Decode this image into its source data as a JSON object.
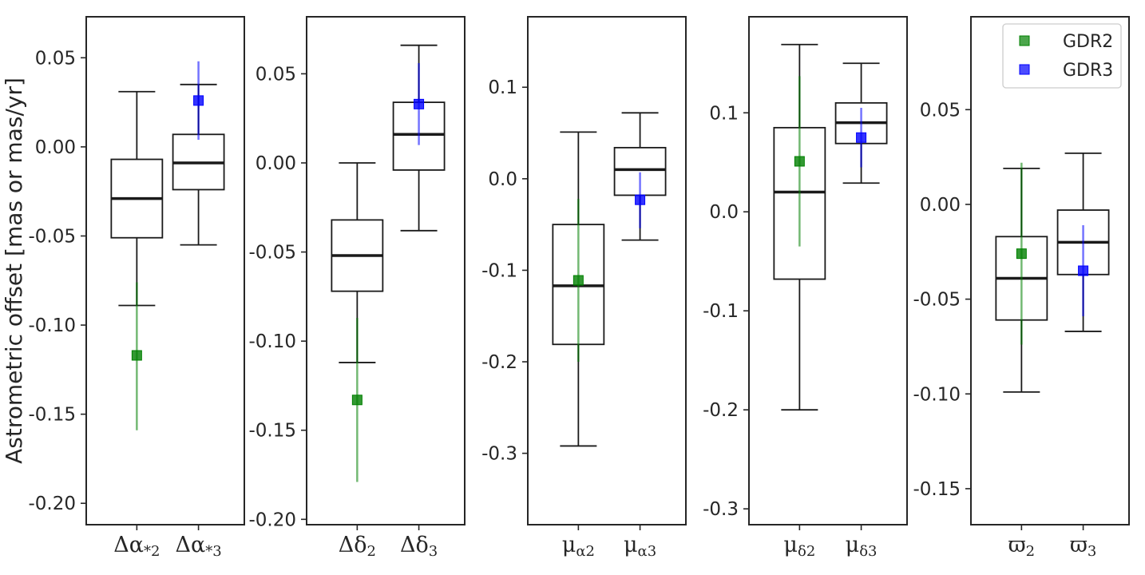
{
  "chart_data": {
    "type": "box",
    "ylabel": "Astrometric offset [mas or mas/yr]",
    "legend": {
      "placement": "top-right of last panel",
      "entries": [
        {
          "label": "GDR2",
          "color": "#008000"
        },
        {
          "label": "GDR3",
          "color": "#0000ff"
        }
      ]
    },
    "panels": [
      {
        "ylim": [
          -0.212,
          0.073
        ],
        "yticks": [
          0.05,
          0.0,
          -0.05,
          -0.1,
          -0.15,
          -0.2
        ],
        "ytick_labels": [
          "0.05",
          "0.00",
          "-0.05",
          "-0.10",
          "-0.15",
          "-0.20"
        ],
        "boxes": [
          {
            "label": "Δα*2",
            "wlo": -0.089,
            "q1": -0.051,
            "med": -0.029,
            "q3": -0.007,
            "whi": 0.031,
            "point": {
              "series": "GDR2",
              "value": -0.117,
              "err_lo": -0.159,
              "err_hi": -0.076
            }
          },
          {
            "label": "Δα*3",
            "wlo": -0.055,
            "q1": -0.024,
            "med": -0.009,
            "q3": 0.007,
            "whi": 0.035,
            "point": {
              "series": "GDR3",
              "value": 0.026,
              "err_lo": 0.004,
              "err_hi": 0.048
            }
          }
        ]
      },
      {
        "ylim": [
          -0.203,
          0.082
        ],
        "yticks": [
          0.05,
          0.0,
          -0.05,
          -0.1,
          -0.15,
          -0.2
        ],
        "ytick_labels": [
          "0.05",
          "0.00",
          "-0.05",
          "-0.10",
          "-0.15",
          "-0.20"
        ],
        "boxes": [
          {
            "label": "Δδ2",
            "wlo": -0.112,
            "q1": -0.072,
            "med": -0.052,
            "q3": -0.032,
            "whi": 0.0,
            "point": {
              "series": "GDR2",
              "value": -0.133,
              "err_lo": -0.179,
              "err_hi": -0.087
            }
          },
          {
            "label": "Δδ3",
            "wlo": -0.038,
            "q1": -0.004,
            "med": 0.016,
            "q3": 0.034,
            "whi": 0.066,
            "point": {
              "series": "GDR3",
              "value": 0.033,
              "err_lo": 0.01,
              "err_hi": 0.056
            }
          }
        ]
      },
      {
        "ylim": [
          -0.378,
          0.177
        ],
        "yticks": [
          0.1,
          0.0,
          -0.1,
          -0.2,
          -0.3
        ],
        "ytick_labels": [
          "0.1",
          "0.0",
          "-0.1",
          "-0.2",
          "-0.3"
        ],
        "boxes": [
          {
            "label": "μα2",
            "wlo": -0.292,
            "q1": -0.181,
            "med": -0.117,
            "q3": -0.05,
            "whi": 0.051,
            "point": {
              "series": "GDR2",
              "value": -0.111,
              "err_lo": -0.2,
              "err_hi": -0.022
            }
          },
          {
            "label": "μα3",
            "wlo": -0.067,
            "q1": -0.018,
            "med": 0.01,
            "q3": 0.034,
            "whi": 0.072,
            "point": {
              "series": "GDR3",
              "value": -0.023,
              "err_lo": -0.054,
              "err_hi": 0.007
            }
          }
        ]
      },
      {
        "ylim": [
          -0.316,
          0.197
        ],
        "yticks": [
          0.1,
          0.0,
          -0.1,
          -0.2,
          -0.3
        ],
        "ytick_labels": [
          "0.1",
          "0.0",
          "-0.1",
          "-0.2",
          "-0.3"
        ],
        "boxes": [
          {
            "label": "μδ2",
            "wlo": -0.2,
            "q1": -0.068,
            "med": 0.02,
            "q3": 0.085,
            "whi": 0.169,
            "point": {
              "series": "GDR2",
              "value": 0.051,
              "err_lo": -0.035,
              "err_hi": 0.137
            }
          },
          {
            "label": "μδ3",
            "wlo": 0.029,
            "q1": 0.069,
            "med": 0.09,
            "q3": 0.11,
            "whi": 0.15,
            "point": {
              "series": "GDR3",
              "value": 0.075,
              "err_lo": 0.045,
              "err_hi": 0.105
            }
          }
        ]
      },
      {
        "ylim": [
          -0.169,
          0.099
        ],
        "yticks": [
          0.05,
          0.0,
          -0.05,
          -0.1,
          -0.15
        ],
        "ytick_labels": [
          "0.05",
          "0.00",
          "-0.05",
          "-0.10",
          "-0.15"
        ],
        "boxes": [
          {
            "label": "ϖ2",
            "wlo": -0.099,
            "q1": -0.061,
            "med": -0.039,
            "q3": -0.017,
            "whi": 0.019,
            "point": {
              "series": "GDR2",
              "value": -0.026,
              "err_lo": -0.074,
              "err_hi": 0.022
            }
          },
          {
            "label": "ϖ3",
            "wlo": -0.067,
            "q1": -0.037,
            "med": -0.02,
            "q3": -0.003,
            "whi": 0.027,
            "point": {
              "series": "GDR3",
              "value": -0.035,
              "err_lo": -0.059,
              "err_hi": -0.011
            }
          }
        ]
      }
    ]
  },
  "category_labels": [
    {
      "base": "Δα",
      "sub": "*2"
    },
    {
      "base": "Δα",
      "sub": "*3"
    },
    {
      "base": "Δδ",
      "sub": "2"
    },
    {
      "base": "Δδ",
      "sub": "3"
    },
    {
      "base": "μ",
      "sub": "α2"
    },
    {
      "base": "μ",
      "sub": "α3"
    },
    {
      "base": "μ",
      "sub": "δ2"
    },
    {
      "base": "μ",
      "sub": "δ3"
    },
    {
      "base": "ϖ",
      "sub": "2"
    },
    {
      "base": "ϖ",
      "sub": "3"
    }
  ]
}
